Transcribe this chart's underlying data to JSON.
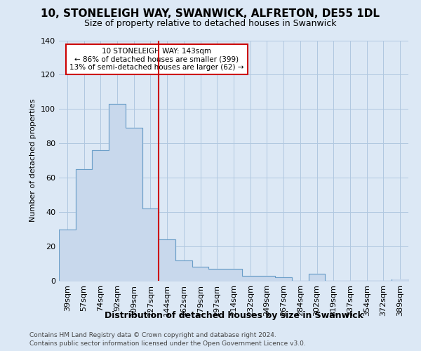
{
  "title_line1": "10, STONELEIGH WAY, SWANWICK, ALFRETON, DE55 1DL",
  "title_line2": "Size of property relative to detached houses in Swanwick",
  "xlabel": "Distribution of detached houses by size in Swanwick",
  "ylabel": "Number of detached properties",
  "footnote1": "Contains HM Land Registry data © Crown copyright and database right 2024.",
  "footnote2": "Contains public sector information licensed under the Open Government Licence v3.0.",
  "categories": [
    "39sqm",
    "57sqm",
    "74sqm",
    "92sqm",
    "109sqm",
    "127sqm",
    "144sqm",
    "162sqm",
    "179sqm",
    "197sqm",
    "214sqm",
    "232sqm",
    "249sqm",
    "267sqm",
    "284sqm",
    "302sqm",
    "319sqm",
    "337sqm",
    "354sqm",
    "372sqm",
    "389sqm"
  ],
  "values": [
    30,
    65,
    76,
    103,
    89,
    42,
    24,
    12,
    8,
    7,
    7,
    3,
    3,
    2,
    0,
    4,
    0,
    0,
    0,
    0,
    1
  ],
  "vline_index": 6,
  "bar_fill": "#c8d8ec",
  "bar_edge": "#6a9ec8",
  "vline_color": "#cc0000",
  "annotation_line1": "10 STONELEIGH WAY: 143sqm",
  "annotation_line2": "← 86% of detached houses are smaller (399)",
  "annotation_line3": "13% of semi-detached houses are larger (62) →",
  "annotation_box_color": "#ffffff",
  "annotation_box_edge": "#cc0000",
  "ylim": [
    0,
    140
  ],
  "yticks": [
    0,
    20,
    40,
    60,
    80,
    100,
    120,
    140
  ],
  "background_color": "#dce8f5",
  "plot_background": "#dce8f5",
  "grid_color": "#b0c8e0",
  "title1_fontsize": 11,
  "title2_fontsize": 9,
  "xlabel_fontsize": 9,
  "ylabel_fontsize": 8,
  "tick_fontsize": 8,
  "footnote_fontsize": 6.5
}
